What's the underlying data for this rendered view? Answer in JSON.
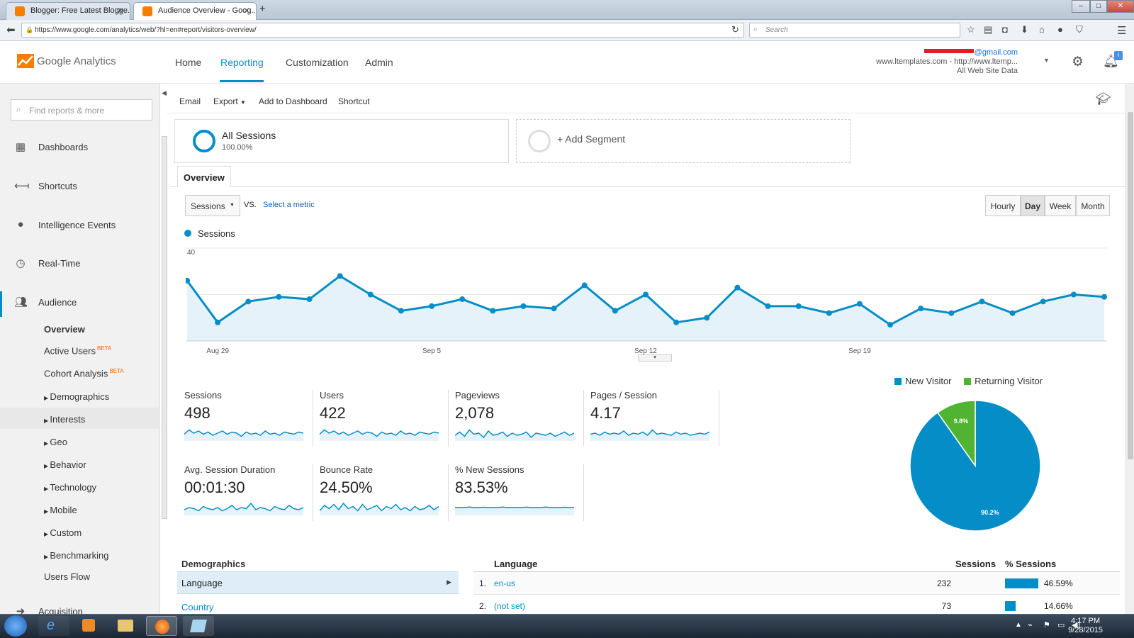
{
  "browser": {
    "tabs": [
      {
        "title": "Blogger: Free Latest Blogge...",
        "active": false
      },
      {
        "title": "Audience Overview - Goog...",
        "active": true
      }
    ],
    "url": "https://www.google.com/analytics/web/?hl=en#report/visitors-overview/",
    "search_placeholder": "Search"
  },
  "ga": {
    "logo_text": "Google Analytics",
    "nav": [
      "Home",
      "Reporting",
      "Customization",
      "Admin"
    ],
    "account_email": "@gmail.com",
    "account_property": "www.ltemplates.com - http://www.ltemp...",
    "account_view": "All Web Site Data"
  },
  "sidebar": {
    "find_placeholder": "Find reports & more",
    "items": [
      "Dashboards",
      "Shortcuts",
      "Intelligence Events",
      "Real-Time",
      "Audience"
    ],
    "audience_sub": [
      "Overview",
      "Active Users",
      "Cohort Analysis",
      "Demographics",
      "Interests",
      "Geo",
      "Behavior",
      "Technology",
      "Mobile",
      "Custom",
      "Benchmarking",
      "Users Flow"
    ],
    "beta_label": "BETA",
    "acquisition": "Acquisition"
  },
  "toolbar": {
    "email": "Email",
    "export": "Export",
    "add_dashboard": "Add to Dashboard",
    "shortcut": "Shortcut"
  },
  "segments": {
    "all_sessions": "All Sessions",
    "all_pct": "100.00%",
    "add_segment": "+ Add Segment"
  },
  "overview_tab": "Overview",
  "metric": {
    "selected": "Sessions",
    "vs": "VS.",
    "select_metric": "Select a metric"
  },
  "granularity": [
    "Hourly",
    "Day",
    "Week",
    "Month"
  ],
  "chart_data": {
    "type": "line",
    "title": "",
    "legend": "Sessions",
    "y_ticks": [
      "40",
      "20"
    ],
    "ylim": [
      0,
      40
    ],
    "x_labels": [
      "Aug 29",
      "Sep 5",
      "Sep 12",
      "Sep 19"
    ],
    "values": [
      26,
      8,
      17,
      19,
      18,
      28,
      20,
      13,
      15,
      18,
      13,
      15,
      14,
      24,
      13,
      20,
      8,
      10,
      23,
      15,
      15,
      12,
      16,
      7,
      14,
      12,
      17,
      12,
      17,
      20,
      19
    ],
    "color": "#058dc7"
  },
  "scorecards": [
    {
      "label": "Sessions",
      "value": "498"
    },
    {
      "label": "Users",
      "value": "422"
    },
    {
      "label": "Pageviews",
      "value": "2,078"
    },
    {
      "label": "Pages / Session",
      "value": "4.17"
    },
    {
      "label": "Avg. Session Duration",
      "value": "00:01:30"
    },
    {
      "label": "Bounce Rate",
      "value": "24.50%"
    },
    {
      "label": "% New Sessions",
      "value": "83.53%"
    }
  ],
  "pie": {
    "legend": [
      "New Visitor",
      "Returning Visitor"
    ],
    "colors": [
      "#058dc7",
      "#50b432"
    ],
    "values": [
      90.2,
      9.8
    ],
    "labels": [
      "90.2%",
      "9.8%"
    ]
  },
  "demographics": {
    "header": "Demographics",
    "language": "Language",
    "country": "Country"
  },
  "language_table": {
    "header": "Language",
    "col_sessions": "Sessions",
    "col_pct": "% Sessions",
    "rows": [
      {
        "rank": "1.",
        "name": "en-us",
        "sessions": "232",
        "pct": "46.59%",
        "fraction": 0.4659
      },
      {
        "rank": "2.",
        "name": "(not set)",
        "sessions": "73",
        "pct": "14.66%",
        "fraction": 0.1466
      }
    ]
  },
  "taskbar": {
    "time": "4:17 PM",
    "date": "9/28/2015"
  }
}
